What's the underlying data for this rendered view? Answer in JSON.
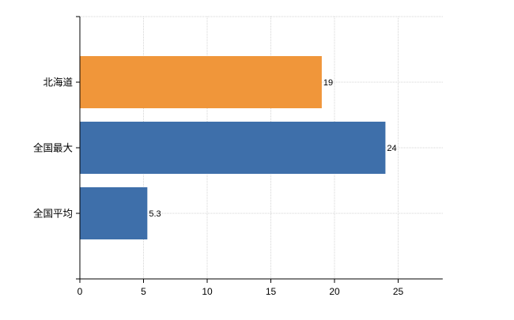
{
  "chart_data": {
    "type": "bar",
    "orientation": "horizontal",
    "categories": [
      "北海道",
      "全国最大",
      "全国平均"
    ],
    "values": [
      19,
      24,
      5.3
    ],
    "data_labels": [
      "19",
      "24",
      "5.3"
    ],
    "bar_colors": [
      "#f0963a",
      "#3e6faa",
      "#3e6faa"
    ],
    "xlim": [
      0,
      28.5
    ],
    "x_ticks": [
      0,
      5,
      10,
      15,
      20,
      25
    ],
    "x_tick_labels": [
      "0",
      "5",
      "10",
      "15",
      "20",
      "25"
    ],
    "grid": true,
    "legend": "none",
    "title": "",
    "xlabel": "",
    "ylabel": ""
  }
}
